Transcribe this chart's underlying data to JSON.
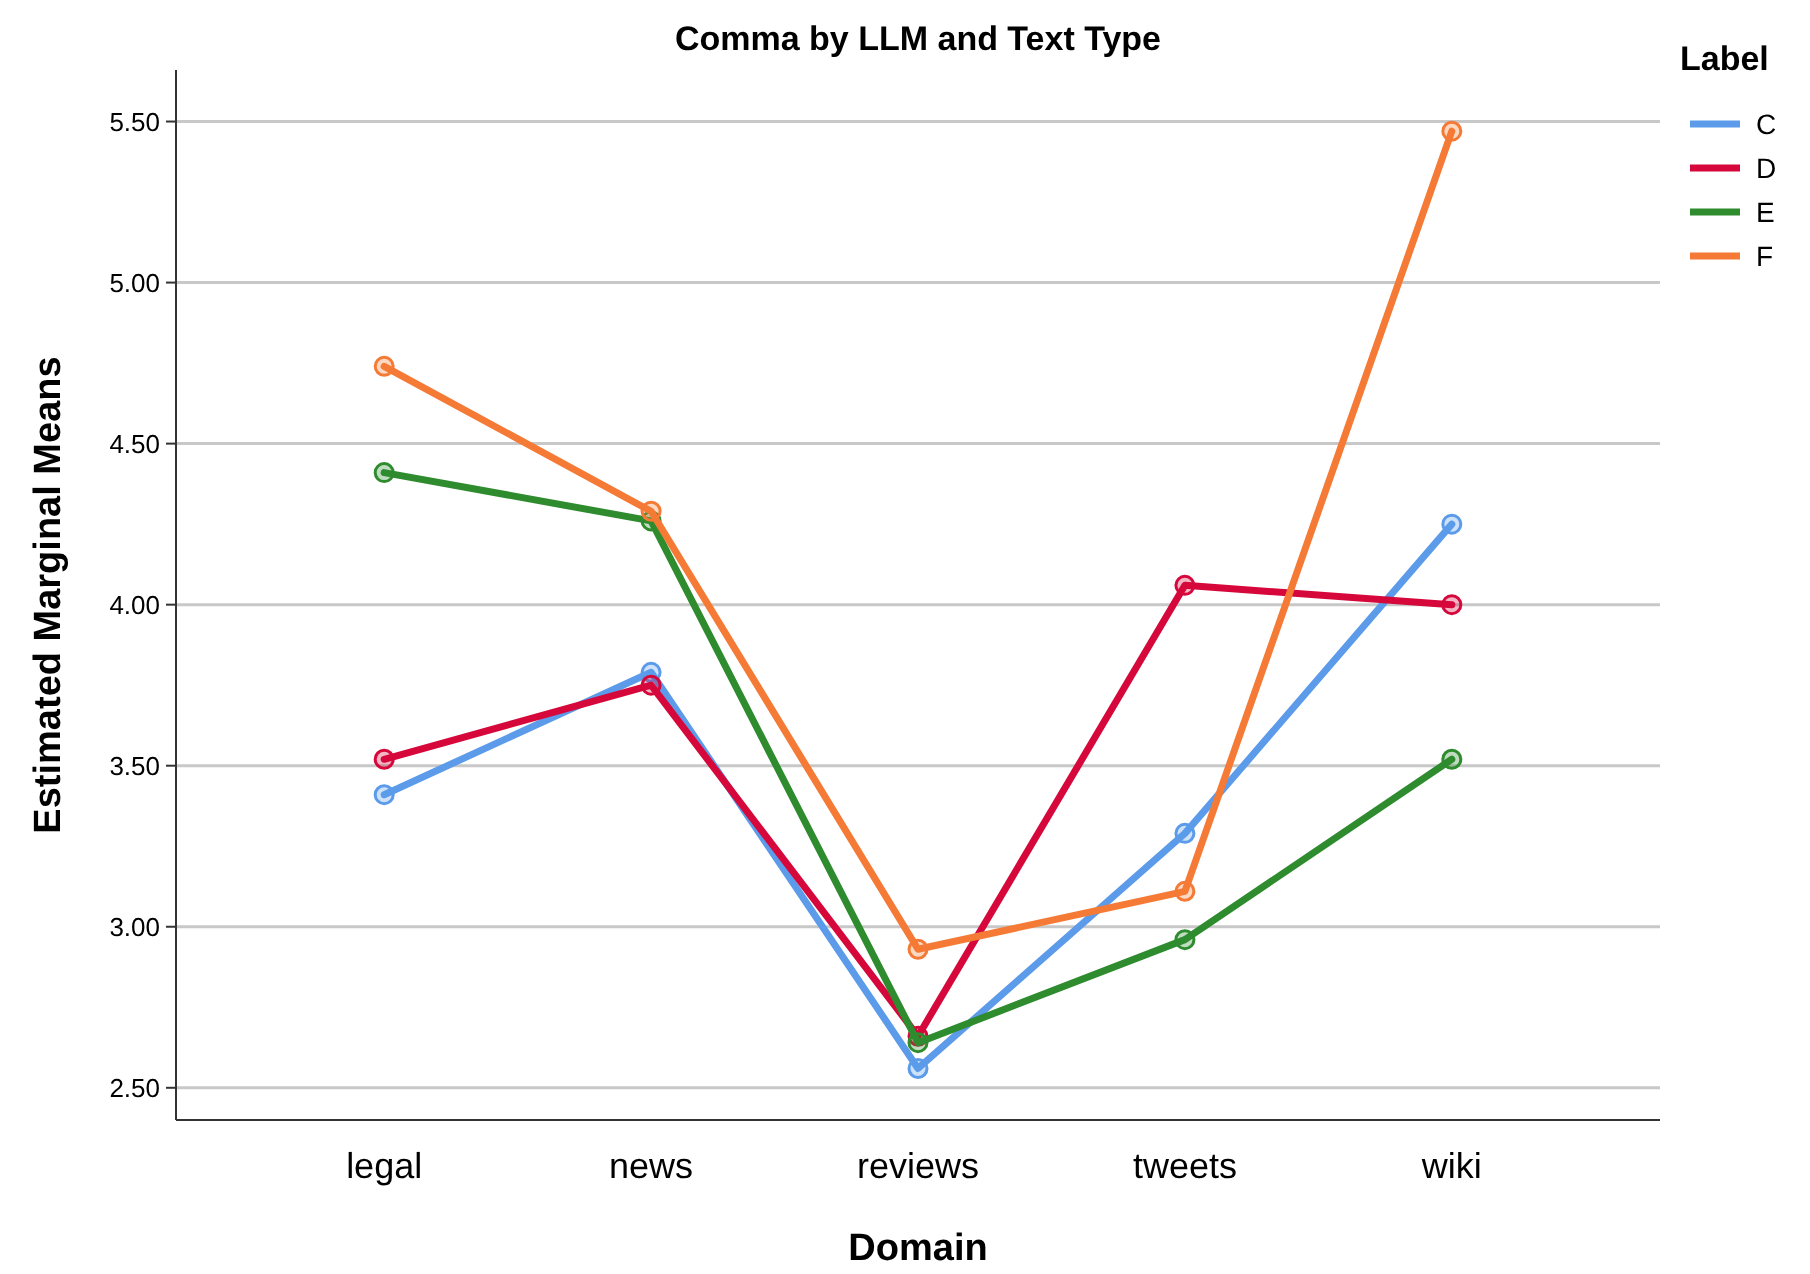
{
  "chart_data": {
    "type": "line",
    "title": "Comma by LLM and Text Type",
    "xlabel": "Domain",
    "ylabel": "Estimated Marginal Means",
    "legend_title": "Label",
    "categories": [
      "legal",
      "news",
      "reviews",
      "tweets",
      "wiki"
    ],
    "series": [
      {
        "name": "C",
        "color": "#5b9bea",
        "values": [
          3.41,
          3.79,
          2.56,
          3.29,
          4.25
        ]
      },
      {
        "name": "D",
        "color": "#d6083b",
        "values": [
          3.52,
          3.75,
          2.66,
          4.06,
          4.0
        ]
      },
      {
        "name": "E",
        "color": "#2e8b2e",
        "values": [
          4.41,
          4.26,
          2.64,
          2.96,
          3.52
        ]
      },
      {
        "name": "F",
        "color": "#f47a35",
        "values": [
          4.74,
          4.29,
          2.93,
          3.11,
          5.47
        ]
      }
    ],
    "ylim": [
      2.4,
      5.66
    ],
    "yticks": [
      {
        "value": 2.5,
        "label": "2.50"
      },
      {
        "value": 3,
        "label": "3.00"
      },
      {
        "value": 3.5,
        "label": "3.50"
      },
      {
        "value": 4,
        "label": "4.00"
      },
      {
        "value": 4.5,
        "label": "4.50"
      },
      {
        "value": 5,
        "label": "5.00"
      },
      {
        "value": 5.5,
        "label": "5.50"
      }
    ],
    "grid": "y",
    "legend": "right",
    "marker": "circle",
    "line_style": "solid"
  }
}
